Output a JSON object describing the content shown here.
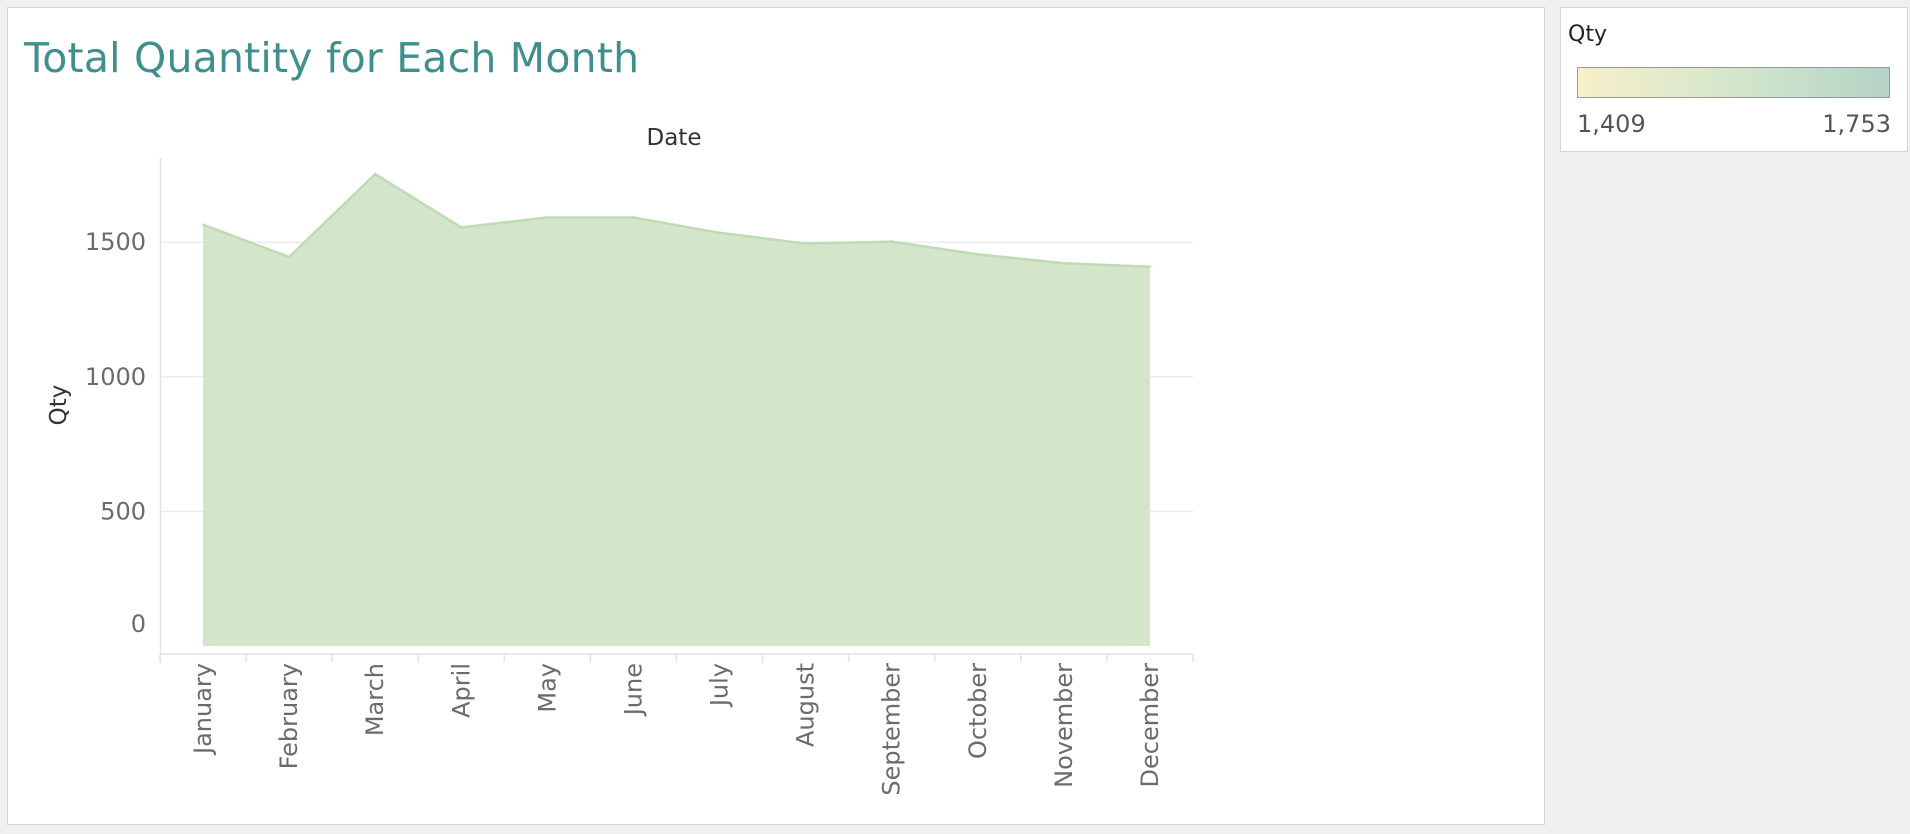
{
  "chart_data": {
    "type": "area",
    "title": "Total Quantity for Each Month",
    "xlabel": "Date",
    "ylabel": "Qty",
    "categories": [
      "January",
      "February",
      "March",
      "April",
      "May",
      "June",
      "July",
      "August",
      "September",
      "October",
      "November",
      "December"
    ],
    "values": [
      1565,
      1445,
      1753,
      1555,
      1592,
      1592,
      1535,
      1495,
      1502,
      1455,
      1422,
      1409
    ],
    "y_ticks": [
      "0",
      "500",
      "1000",
      "1500"
    ],
    "ylim": [
      0,
      1850
    ],
    "grid": "horizontal",
    "colors": {
      "area_fill": "#d3e6cc",
      "area_stroke": "#bedbb3",
      "gridline": "#ececec",
      "axis_text": "#6b6b6b",
      "title": "#3f8f8c"
    }
  },
  "legend": {
    "title": "Qty",
    "min_label": "1,409",
    "max_label": "1,753",
    "ramp_colors": [
      "#f7efc9",
      "#d3e6cc",
      "#b5d3c7"
    ]
  }
}
